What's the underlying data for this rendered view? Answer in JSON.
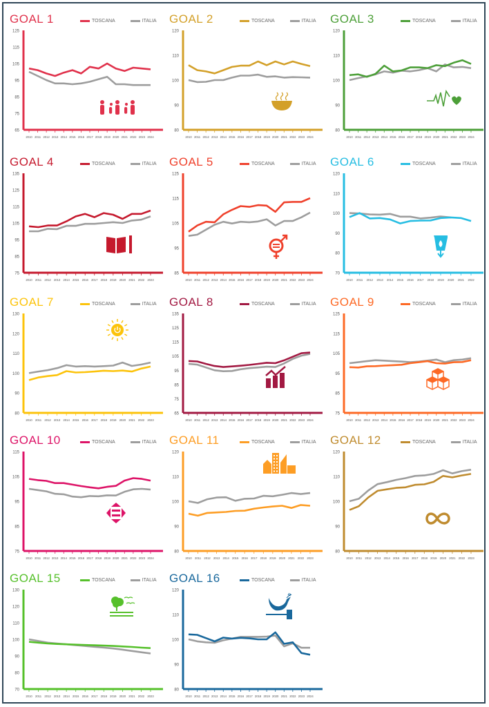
{
  "chart_data": [
    {
      "type": "line",
      "title": "GOAL 1",
      "color": "#e0314b",
      "icon": "family-icon",
      "yticks": [
        65,
        75,
        85,
        95,
        105,
        115,
        125
      ],
      "ylim": [
        65,
        125
      ],
      "categories": [
        "2010",
        "2011",
        "2012",
        "2013",
        "2014",
        "2015",
        "2016",
        "2017",
        "2018",
        "2019",
        "2020",
        "2021",
        "2022",
        "2023",
        "2024"
      ],
      "series": [
        {
          "name": "TOSCANA",
          "values": [
            102,
            101,
            99,
            97.5,
            99.5,
            101,
            99,
            103,
            102,
            105,
            102,
            100.5,
            102.5,
            102,
            101.5
          ]
        },
        {
          "name": "ITALIA",
          "values": [
            100,
            97.5,
            95,
            93,
            93,
            92.5,
            93,
            94,
            95.5,
            97,
            92.5,
            92.5,
            92,
            92,
            92
          ]
        }
      ]
    },
    {
      "type": "line",
      "title": "GOAL 2",
      "color": "#d3a029",
      "icon": "bowl-icon",
      "yticks": [
        80,
        90,
        100,
        110,
        120
      ],
      "ylim": [
        80,
        120
      ],
      "categories": [
        "2010",
        "2011",
        "2012",
        "2013",
        "2014",
        "2015",
        "2016",
        "2017",
        "2018",
        "2019",
        "2020",
        "2021",
        "2022",
        "2023",
        "2024"
      ],
      "series": [
        {
          "name": "TOSCANA",
          "values": [
            106,
            104,
            103.5,
            102.7,
            104,
            105.3,
            105.8,
            105.8,
            107.5,
            106,
            107.5,
            106.3,
            107.5,
            106.5,
            105.6
          ]
        },
        {
          "name": "ITALIA",
          "values": [
            100,
            99.2,
            99.3,
            100,
            100,
            101,
            101.8,
            101.8,
            102.2,
            101.3,
            101.5,
            101,
            101.2,
            101.1,
            101
          ]
        }
      ]
    },
    {
      "type": "line",
      "title": "GOAL 3",
      "color": "#4c9f38",
      "icon": "heartbeat-icon",
      "yticks": [
        80,
        90,
        100,
        110,
        120
      ],
      "ylim": [
        80,
        120
      ],
      "categories": [
        "2010",
        "2011",
        "2012",
        "2013",
        "2014",
        "2015",
        "2016",
        "2017",
        "2018",
        "2019",
        "2020",
        "2021",
        "2022",
        "2023",
        "2024"
      ],
      "series": [
        {
          "name": "TOSCANA",
          "values": [
            102,
            102.3,
            101.3,
            102.5,
            105.8,
            103.5,
            103.9,
            105.1,
            105.1,
            104.8,
            106,
            105.6,
            107,
            108,
            106.5
          ]
        },
        {
          "name": "ITALIA",
          "values": [
            100,
            100.8,
            101.5,
            102.3,
            103.5,
            103,
            103.8,
            103.5,
            104,
            104.8,
            103.5,
            106.3,
            105.1,
            105.3,
            104.8
          ]
        }
      ]
    },
    {
      "type": "line",
      "title": "GOAL 4",
      "color": "#c5192d",
      "icon": "book-icon",
      "yticks": [
        75,
        85,
        95,
        105,
        115,
        125,
        135
      ],
      "ylim": [
        75,
        135
      ],
      "categories": [
        "2010",
        "2011",
        "2012",
        "2013",
        "2014",
        "2015",
        "2016",
        "2017",
        "2018",
        "2019",
        "2020",
        "2021",
        "2022",
        "2023"
      ],
      "series": [
        {
          "name": "TOSCANA",
          "values": [
            103,
            102.5,
            103.5,
            103.5,
            106,
            109,
            110.5,
            108.5,
            111,
            110,
            107.5,
            110.5,
            110.5,
            112.5
          ]
        },
        {
          "name": "ITALIA",
          "values": [
            100,
            100,
            101.5,
            101.3,
            103.3,
            103.3,
            104.5,
            104.5,
            105,
            105.5,
            105,
            106.5,
            107,
            109
          ]
        }
      ]
    },
    {
      "type": "line",
      "title": "GOAL 5",
      "color": "#ef402b",
      "icon": "gender-equality-icon",
      "yticks": [
        85,
        95,
        105,
        115,
        125
      ],
      "ylim": [
        85,
        125
      ],
      "categories": [
        "2010",
        "2011",
        "2012",
        "2013",
        "2014",
        "2015",
        "2016",
        "2017",
        "2018",
        "2019",
        "2020",
        "2021",
        "2022",
        "2023",
        "2024"
      ],
      "series": [
        {
          "name": "TOSCANA",
          "values": [
            101.5,
            104,
            105.5,
            105.3,
            108.5,
            110.3,
            111.8,
            111.5,
            112.2,
            112,
            109.5,
            113.3,
            113.5,
            113.5,
            115
          ]
        },
        {
          "name": "ITALIA",
          "values": [
            99.8,
            100.3,
            102.3,
            104.3,
            105.5,
            104.8,
            105.5,
            105.3,
            105.6,
            106.5,
            104,
            105.8,
            105.8,
            107.3,
            109.2
          ]
        }
      ]
    },
    {
      "type": "line",
      "title": "GOAL 6",
      "color": "#26bde2",
      "icon": "water-drop-icon",
      "yticks": [
        70,
        80,
        90,
        100,
        110,
        120
      ],
      "ylim": [
        70,
        120
      ],
      "categories": [
        "2010",
        "2011",
        "2012",
        "2013",
        "2014",
        "2015",
        "2016",
        "2017",
        "2018",
        "2019",
        "2020",
        "2021",
        "2022"
      ],
      "series": [
        {
          "name": "TOSCANA",
          "values": [
            98,
            100,
            97.3,
            97.5,
            96.8,
            94.8,
            96,
            96.2,
            96.3,
            97.5,
            97.8,
            97.5,
            96
          ]
        },
        {
          "name": "ITALIA",
          "values": [
            100,
            99.8,
            99.3,
            99.2,
            99.6,
            98.2,
            98.2,
            97.3,
            97.7,
            98.3,
            97.8,
            null,
            null
          ]
        }
      ]
    },
    {
      "type": "line",
      "title": "GOAL 7",
      "color": "#fcc30b",
      "icon": "sun-power-icon",
      "yticks": [
        80,
        90,
        100,
        110,
        120,
        130
      ],
      "ylim": [
        80,
        130
      ],
      "categories": [
        "2010",
        "2011",
        "2012",
        "2013",
        "2014",
        "2015",
        "2016",
        "2017",
        "2018",
        "2019",
        "2020",
        "2021",
        "2022",
        "2023"
      ],
      "series": [
        {
          "name": "TOSCANA",
          "values": [
            96.5,
            97.8,
            98.5,
            99,
            101,
            100.3,
            100.5,
            100.8,
            101.2,
            101,
            101.3,
            100.8,
            102.3,
            103.3
          ]
        },
        {
          "name": "ITALIA",
          "values": [
            100,
            100.8,
            101.5,
            102.5,
            104,
            103.3,
            103.5,
            103.3,
            103.5,
            103.8,
            105.3,
            103.6,
            104.3,
            105.3
          ]
        }
      ]
    },
    {
      "type": "line",
      "title": "GOAL 8",
      "color": "#a21942",
      "icon": "growth-chart-icon",
      "yticks": [
        65,
        75,
        85,
        95,
        105,
        115,
        125,
        135
      ],
      "ylim": [
        65,
        135
      ],
      "categories": [
        "2010",
        "2011",
        "2012",
        "2013",
        "2014",
        "2015",
        "2016",
        "2017",
        "2018",
        "2019",
        "2020",
        "2021",
        "2022",
        "2023",
        "2024"
      ],
      "series": [
        {
          "name": "TOSCANA",
          "values": [
            101.5,
            101.2,
            99.5,
            98,
            97.3,
            97.7,
            98.2,
            98.8,
            99.5,
            100.3,
            100,
            102,
            104.5,
            107,
            107.5
          ]
        },
        {
          "name": "ITALIA",
          "values": [
            99.5,
            99,
            97,
            95,
            94.3,
            94.5,
            95.7,
            96.5,
            97,
            97.5,
            97.3,
            99.8,
            103,
            105.3,
            106.5
          ]
        }
      ]
    },
    {
      "type": "line",
      "title": "GOAL 9",
      "color": "#fd6925",
      "icon": "cubes-icon",
      "yticks": [
        75,
        85,
        95,
        105,
        115,
        125
      ],
      "ylim": [
        75,
        125
      ],
      "categories": [
        "2010",
        "2011",
        "2012",
        "2013",
        "2014",
        "2015",
        "2016",
        "2017",
        "2018",
        "2019",
        "2020",
        "2021",
        "2022",
        "2023",
        "2024"
      ],
      "series": [
        {
          "name": "TOSCANA",
          "values": [
            98,
            97.8,
            98.4,
            98.5,
            98.8,
            99,
            99.2,
            100,
            100.5,
            101,
            100,
            99.8,
            100.5,
            100.6,
            101.5
          ]
        },
        {
          "name": "ITALIA",
          "values": [
            100,
            100.5,
            101,
            101.5,
            101.3,
            101,
            100.8,
            100.5,
            100.8,
            101.3,
            101.8,
            100.5,
            101.5,
            101.8,
            102.5
          ]
        }
      ]
    },
    {
      "type": "line",
      "title": "GOAL 10",
      "color": "#dd1367",
      "icon": "inequality-arrows-icon",
      "yticks": [
        75,
        85,
        95,
        105,
        115
      ],
      "ylim": [
        75,
        115
      ],
      "categories": [
        "2010",
        "2011",
        "2012",
        "2013",
        "2014",
        "2015",
        "2016",
        "2017",
        "2018",
        "2019",
        "2020",
        "2021",
        "2022",
        "2023",
        "2024"
      ],
      "series": [
        {
          "name": "TOSCANA",
          "values": [
            104,
            103.5,
            103.2,
            102.3,
            102.3,
            101.7,
            101.1,
            100.6,
            100.2,
            100.8,
            101.2,
            103.3,
            104.3,
            104,
            103.3
          ]
        },
        {
          "name": "ITALIA",
          "values": [
            100,
            99.5,
            99,
            98,
            97.8,
            96.9,
            96.6,
            97.1,
            97,
            97.4,
            97.3,
            98.8,
            99.8,
            100,
            99.7
          ]
        }
      ]
    },
    {
      "type": "line",
      "title": "GOAL 11",
      "color": "#fd9d24",
      "icon": "city-buildings-icon",
      "yticks": [
        80,
        90,
        100,
        110,
        120
      ],
      "ylim": [
        80,
        120
      ],
      "categories": [
        "2010",
        "2011",
        "2012",
        "2013",
        "2014",
        "2015",
        "2016",
        "2017",
        "2018",
        "2019",
        "2020",
        "2021",
        "2022",
        "2023"
      ],
      "series": [
        {
          "name": "TOSCANA",
          "values": [
            95,
            94.2,
            95.3,
            95.5,
            95.7,
            96.1,
            96.2,
            97,
            97.5,
            97.9,
            98.2,
            97.3,
            98.5,
            98.2
          ]
        },
        {
          "name": "ITALIA",
          "values": [
            100,
            99.3,
            100.8,
            101.5,
            101.6,
            100.2,
            101,
            101.1,
            102.2,
            102,
            102.6,
            103.3,
            102.9,
            103.3
          ]
        }
      ]
    },
    {
      "type": "line",
      "title": "GOAL 12",
      "color": "#bf8b2e",
      "icon": "infinity-loop-icon",
      "yticks": [
        80,
        90,
        100,
        110,
        120
      ],
      "ylim": [
        80,
        120
      ],
      "categories": [
        "2010",
        "2011",
        "2012",
        "2013",
        "2014",
        "2015",
        "2016",
        "2017",
        "2018",
        "2019",
        "2020",
        "2021",
        "2022",
        "2023"
      ],
      "series": [
        {
          "name": "TOSCANA",
          "values": [
            96.5,
            98,
            101.5,
            104.2,
            104.8,
            105.4,
            105.6,
            106.6,
            106.8,
            107.8,
            110.2,
            109.6,
            110.4,
            111
          ]
        },
        {
          "name": "ITALIA",
          "values": [
            100,
            101,
            104.3,
            106.9,
            107.7,
            108.6,
            109.3,
            110.2,
            110.4,
            111,
            112.5,
            111.2,
            112.1,
            112.7
          ]
        }
      ]
    },
    {
      "type": "line",
      "title": "GOAL 15",
      "color": "#56c02b",
      "icon": "tree-birds-icon",
      "yticks": [
        70,
        80,
        90,
        100,
        110,
        120,
        130
      ],
      "ylim": [
        70,
        130
      ],
      "categories": [
        "2010",
        "2011",
        "2012",
        "2013",
        "2014",
        "2015",
        "2016",
        "2017",
        "2018",
        "2019",
        "2020",
        "2021",
        "2022",
        "2023"
      ],
      "series": [
        {
          "name": "TOSCANA",
          "values": [
            98.5,
            98,
            97.5,
            97.2,
            97,
            96.8,
            96.6,
            96.4,
            96.2,
            96,
            95.7,
            95.4,
            95,
            94.7
          ]
        },
        {
          "name": "ITALIA",
          "values": [
            100,
            99,
            98,
            97.5,
            97,
            96.5,
            96,
            95.5,
            95,
            94.5,
            93.8,
            93,
            92.2,
            91.5
          ]
        }
      ]
    },
    {
      "type": "line",
      "title": "GOAL 16",
      "color": "#19689c",
      "icon": "dove-gavel-icon",
      "yticks": [
        80,
        90,
        100,
        110,
        120
      ],
      "ylim": [
        80,
        120
      ],
      "categories": [
        "2010",
        "2011",
        "2012",
        "2013",
        "2014",
        "2015",
        "2016",
        "2017",
        "2018",
        "2019",
        "2020",
        "2021",
        "2022",
        "2023",
        "2024"
      ],
      "series": [
        {
          "name": "TOSCANA",
          "values": [
            102,
            101.8,
            100.5,
            99.2,
            100.7,
            100.3,
            100.6,
            100.4,
            100,
            100,
            102.8,
            98.2,
            98.8,
            94.5,
            93.8
          ]
        },
        {
          "name": "ITALIA",
          "values": [
            100,
            99.2,
            98.8,
            98.6,
            99.6,
            100.3,
            101,
            101,
            101,
            101.1,
            101.5,
            97.2,
            98.4,
            96.6,
            96.6
          ]
        }
      ]
    }
  ],
  "legend": {
    "toscana": "TOSCANA",
    "italia": "ITALIA",
    "italia_color": "#9d9d9d"
  }
}
